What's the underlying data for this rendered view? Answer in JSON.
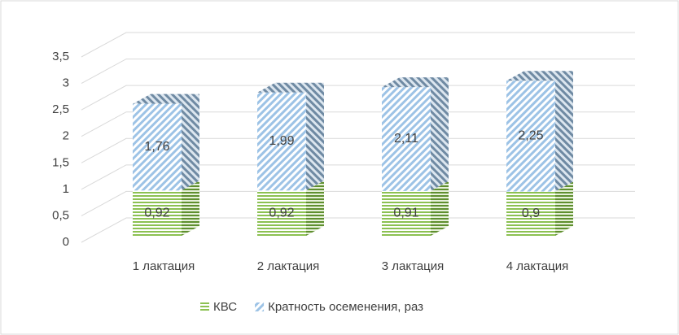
{
  "chart_data": {
    "type": "bar3d_stacked",
    "categories": [
      "1 лактация",
      "2 лактация",
      "3 лактация",
      "4 лактация"
    ],
    "series": [
      {
        "name": "КВС",
        "color": "#8cc152",
        "values": [
          0.92,
          0.92,
          0.91,
          0.9
        ],
        "value_labels": [
          "0,92",
          "0,92",
          "0,91",
          "0,9"
        ]
      },
      {
        "name": "Кратность осеменения, раз",
        "color": "#9dc3e6",
        "values": [
          1.76,
          1.99,
          2.11,
          2.25
        ],
        "value_labels": [
          "1,76",
          "1,99",
          "2,11",
          "2,25"
        ]
      }
    ],
    "ylim": [
      0,
      3.5
    ],
    "yticks": [
      0,
      {
        "value": 0.5,
        "label": "0,5"
      },
      1,
      {
        "value": 1.5,
        "label": "1,5"
      },
      2,
      {
        "value": 2.5,
        "label": "2,5"
      },
      3,
      {
        "value": 3.5,
        "label": "3,5"
      }
    ],
    "grid": true,
    "legend": "bottom"
  }
}
